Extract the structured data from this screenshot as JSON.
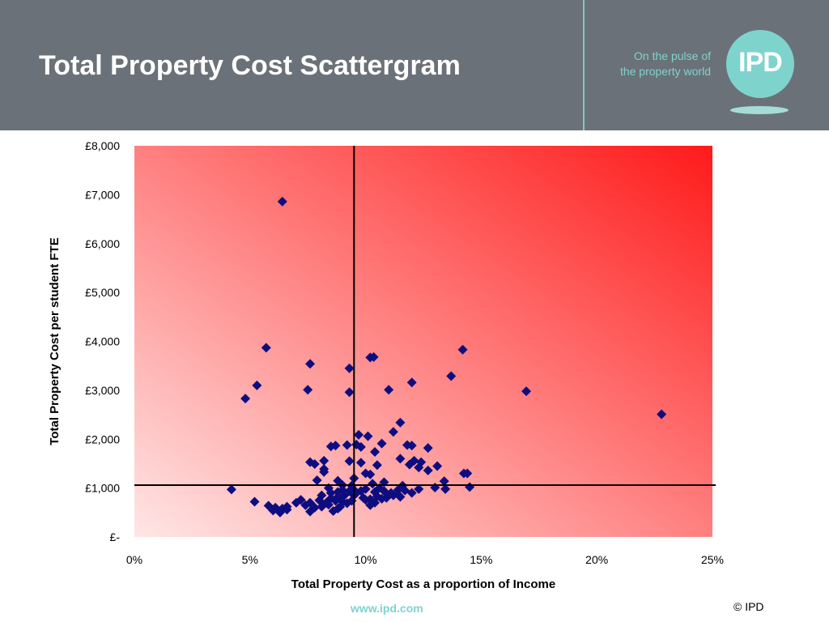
{
  "header": {
    "title": "Total Property Cost Scattergram",
    "tagline_line1": "On the pulse of",
    "tagline_line2": "the property world",
    "logo_text": "IPD"
  },
  "footer": {
    "url": "www.ipd.com",
    "copyright": "© IPD"
  },
  "colors": {
    "header_bg": "#6b7178",
    "accent": "#7fd3cd",
    "marker": "#0d0d80",
    "gradient_light": "#ffe6e6",
    "gradient_dark": "#ff1a1a"
  },
  "chart_data": {
    "type": "scatter",
    "title": "",
    "xlabel": "Total Property Cost as a proportion of Income",
    "ylabel": "Total Property Cost per student FTE",
    "xlim": [
      0,
      25
    ],
    "ylim": [
      0,
      8000
    ],
    "x_ticks": [
      {
        "value": 0,
        "label": "0%"
      },
      {
        "value": 5,
        "label": "5%"
      },
      {
        "value": 10,
        "label": "10%"
      },
      {
        "value": 15,
        "label": "15%"
      },
      {
        "value": 20,
        "label": "20%"
      },
      {
        "value": 25,
        "label": "25%"
      }
    ],
    "y_ticks": [
      {
        "value": 0,
        "label": "£-"
      },
      {
        "value": 1000,
        "label": "£1,000"
      },
      {
        "value": 2000,
        "label": "£2,000"
      },
      {
        "value": 3000,
        "label": "£3,000"
      },
      {
        "value": 4000,
        "label": "£4,000"
      },
      {
        "value": 5000,
        "label": "£5,000"
      },
      {
        "value": 6000,
        "label": "£6,000"
      },
      {
        "value": 7000,
        "label": "£7,000"
      },
      {
        "value": 8000,
        "label": "£8,000"
      }
    ],
    "reference_lines": {
      "x": 9.5,
      "y": 1060
    },
    "grid": false,
    "legend": "none",
    "points": [
      [
        6.4,
        6860
      ],
      [
        5.7,
        3870
      ],
      [
        7.6,
        3540
      ],
      [
        10.2,
        3670
      ],
      [
        10.35,
        3680
      ],
      [
        14.2,
        3830
      ],
      [
        9.3,
        3450
      ],
      [
        13.7,
        3290
      ],
      [
        5.3,
        3100
      ],
      [
        4.8,
        2830
      ],
      [
        7.5,
        3010
      ],
      [
        9.3,
        2960
      ],
      [
        11.0,
        3010
      ],
      [
        12.0,
        3160
      ],
      [
        16.95,
        2980
      ],
      [
        22.8,
        2510
      ],
      [
        11.5,
        2340
      ],
      [
        11.2,
        2150
      ],
      [
        9.7,
        2090
      ],
      [
        10.1,
        2060
      ],
      [
        10.7,
        1910
      ],
      [
        11.8,
        1880
      ],
      [
        12.0,
        1870
      ],
      [
        12.7,
        1820
      ],
      [
        8.5,
        1850
      ],
      [
        8.7,
        1870
      ],
      [
        9.2,
        1880
      ],
      [
        9.6,
        1890
      ],
      [
        9.8,
        1840
      ],
      [
        10.4,
        1740
      ],
      [
        11.5,
        1600
      ],
      [
        12.1,
        1560
      ],
      [
        12.4,
        1530
      ],
      [
        13.1,
        1450
      ],
      [
        7.6,
        1530
      ],
      [
        7.8,
        1490
      ],
      [
        8.2,
        1560
      ],
      [
        8.2,
        1390
      ],
      [
        8.2,
        1330
      ],
      [
        9.3,
        1550
      ],
      [
        9.8,
        1520
      ],
      [
        10.5,
        1470
      ],
      [
        10.0,
        1300
      ],
      [
        10.2,
        1280
      ],
      [
        11.9,
        1480
      ],
      [
        12.3,
        1420
      ],
      [
        12.7,
        1360
      ],
      [
        14.25,
        1300
      ],
      [
        14.4,
        1300
      ],
      [
        7.9,
        1160
      ],
      [
        8.8,
        1150
      ],
      [
        9.5,
        1200
      ],
      [
        13.4,
        1140
      ],
      [
        9.0,
        1060
      ],
      [
        10.8,
        1120
      ],
      [
        11.6,
        1050
      ],
      [
        4.2,
        970
      ],
      [
        13.0,
        1010
      ],
      [
        13.45,
        980
      ],
      [
        14.5,
        1020
      ],
      [
        12.3,
        980
      ],
      [
        8.4,
        1000
      ],
      [
        9.4,
        1050
      ],
      [
        10.3,
        1090
      ],
      [
        11.4,
        960
      ],
      [
        10.6,
        1000
      ],
      [
        8.5,
        900
      ],
      [
        8.8,
        920
      ],
      [
        9.0,
        960
      ],
      [
        9.3,
        940
      ],
      [
        9.6,
        900
      ],
      [
        9.8,
        940
      ],
      [
        10.0,
        980
      ],
      [
        10.4,
        920
      ],
      [
        10.8,
        940
      ],
      [
        11.1,
        900
      ],
      [
        11.4,
        870
      ],
      [
        11.7,
        950
      ],
      [
        12.0,
        900
      ],
      [
        8.1,
        850
      ],
      [
        8.5,
        790
      ],
      [
        8.8,
        820
      ],
      [
        9.1,
        860
      ],
      [
        9.5,
        850
      ],
      [
        9.9,
        800
      ],
      [
        10.2,
        770
      ],
      [
        10.5,
        830
      ],
      [
        10.9,
        800
      ],
      [
        11.2,
        850
      ],
      [
        7.2,
        760
      ],
      [
        7.6,
        700
      ],
      [
        8.0,
        750
      ],
      [
        8.3,
        700
      ],
      [
        8.7,
        740
      ],
      [
        9.0,
        720
      ],
      [
        9.4,
        740
      ],
      [
        10.0,
        760
      ],
      [
        10.4,
        700
      ],
      [
        10.7,
        780
      ],
      [
        11.5,
        820
      ],
      [
        8.4,
        660
      ],
      [
        8.9,
        620
      ],
      [
        9.2,
        690
      ],
      [
        10.2,
        650
      ],
      [
        5.2,
        720
      ],
      [
        5.8,
        640
      ],
      [
        6.1,
        600
      ],
      [
        6.4,
        580
      ],
      [
        6.6,
        620
      ],
      [
        7.0,
        700
      ],
      [
        7.4,
        650
      ],
      [
        7.8,
        600
      ],
      [
        8.1,
        620
      ],
      [
        8.6,
        530
      ],
      [
        8.8,
        580
      ],
      [
        6.0,
        540
      ],
      [
        6.3,
        500
      ],
      [
        6.6,
        560
      ],
      [
        7.6,
        520
      ],
      [
        9.5,
        960
      ]
    ]
  }
}
